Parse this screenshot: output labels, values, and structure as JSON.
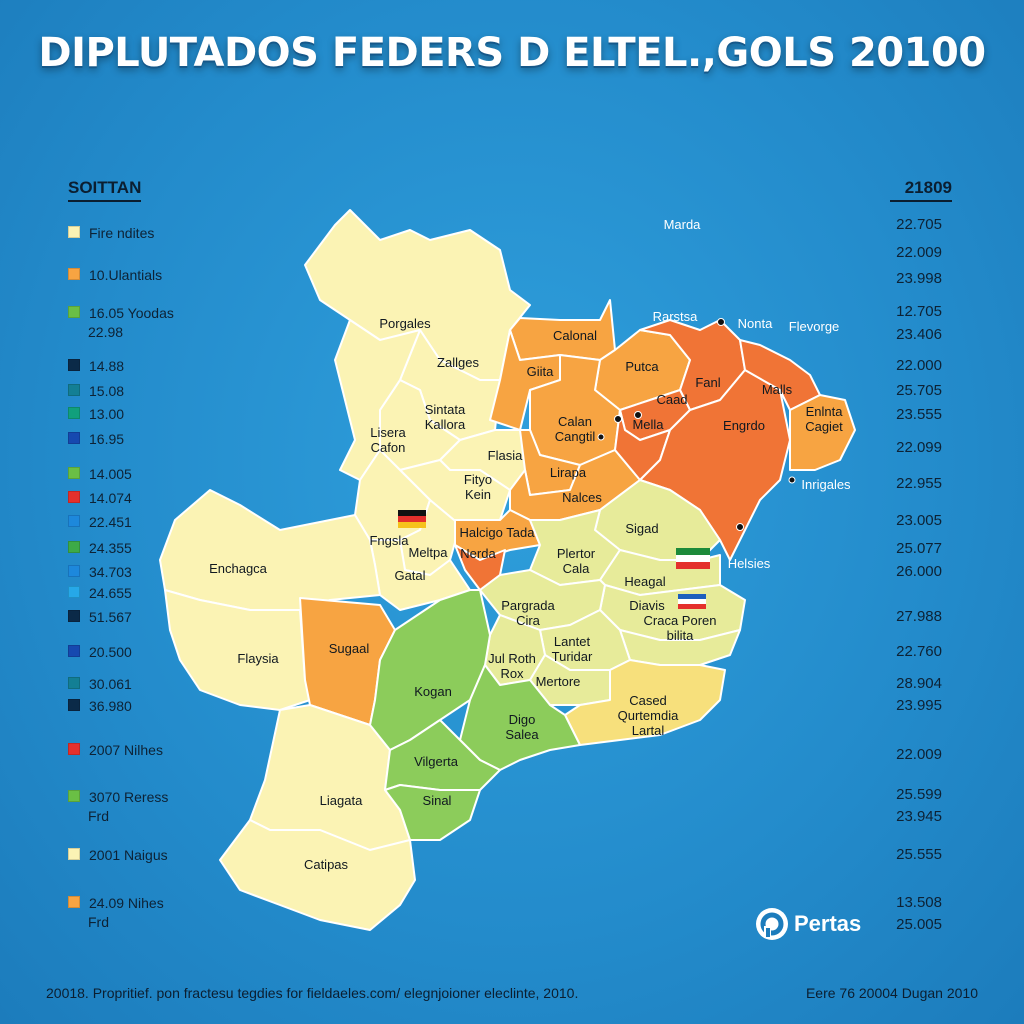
{
  "title": "DIPLUTADOS FEDERS D ELTEL.,GOLS 20100",
  "legend": {
    "heading": "SOITTAN",
    "items": [
      {
        "label": "Fire ndites",
        "color": "#fbf3b4"
      },
      {
        "label": "10.Ulantials",
        "color": "#f7a442"
      },
      {
        "label": "16.05 Yoodas",
        "sub": "22.98",
        "color": "#6abf45"
      },
      {
        "label": "14.88",
        "color": "#0b2a48"
      },
      {
        "label": "15.08",
        "color": "#137f94"
      },
      {
        "label": "13.00",
        "color": "#11a07c"
      },
      {
        "label": "16.95",
        "color": "#1649b0"
      },
      {
        "label": "14.005",
        "color": "#6abf45"
      },
      {
        "label": "14.074",
        "color": "#e4302c"
      },
      {
        "label": "22.451",
        "color": "#1d88dc"
      },
      {
        "label": "24.355",
        "color": "#3daa48"
      },
      {
        "label": "34.703",
        "color": "#1d88dc"
      },
      {
        "label": "24.655",
        "color": "#26a8e8"
      },
      {
        "label": "51.567",
        "color": "#0b2a48"
      },
      {
        "label": "20.500",
        "color": "#1649b0"
      },
      {
        "label": "30.061",
        "color": "#137f94"
      },
      {
        "label": "36.980",
        "color": "#0b2a48"
      },
      {
        "label": "2007 Nilhes",
        "color": "#e4302c"
      },
      {
        "label": "3070 Reress",
        "sub": "Frd",
        "color": "#6abf45"
      },
      {
        "label": "2001 Naigus",
        "color": "#fbf3b4"
      },
      {
        "label": "24.09 Nihes",
        "sub": "Frd",
        "color": "#f7a442"
      }
    ]
  },
  "values_column": {
    "heading": "21809",
    "values": [
      "22.705",
      "22.009",
      "23.998",
      "12.705",
      "23.406",
      "22.000",
      "25.705",
      "23.555",
      "22.099",
      "22.955",
      "23.005",
      "25.077",
      "26.000",
      "27.988",
      "22.760",
      "28.904",
      "23.995",
      "22.009",
      "25.599",
      "23.945",
      "25.555",
      "13.508",
      "25.005"
    ]
  },
  "map": {
    "regions": [
      {
        "name": "Porgales",
        "fill": "#fbf3b4"
      },
      {
        "name": "Zallges",
        "fill": "#fbf3b4"
      },
      {
        "name": "Sintata Kallora",
        "fill": "#fbf3b4"
      },
      {
        "name": "Lisera Cafon",
        "fill": "#fbf3b4"
      },
      {
        "name": "Flasia",
        "fill": "#fbf3b4"
      },
      {
        "name": "Fityo Kein",
        "fill": "#fbf3b4"
      },
      {
        "name": "Fngsla",
        "fill": "#fbf3b4"
      },
      {
        "name": "Meltpa",
        "fill": "#fbf3b4"
      },
      {
        "name": "Gatal",
        "fill": "#fbf3b4"
      },
      {
        "name": "Enchagca",
        "fill": "#fbf3b4"
      },
      {
        "name": "Flaysia",
        "fill": "#fbf3b4"
      },
      {
        "name": "Sugaal",
        "fill": "#f7a442"
      },
      {
        "name": "Liagata",
        "fill": "#fbf3b4"
      },
      {
        "name": "Catipas",
        "fill": "#fbf3b4"
      },
      {
        "name": "Calonal",
        "fill": "#f7a442"
      },
      {
        "name": "Giita",
        "fill": "#f7a442"
      },
      {
        "name": "Putca",
        "fill": "#f7a442"
      },
      {
        "name": "Calan Cangtil",
        "fill": "#f7a442"
      },
      {
        "name": "Lirapa",
        "fill": "#f7a442"
      },
      {
        "name": "Nalces",
        "fill": "#f7a442"
      },
      {
        "name": "Halcigo Tada",
        "fill": "#f7a442"
      },
      {
        "name": "Nerda",
        "fill": "#f7a442"
      },
      {
        "name": "Fanl",
        "fill": "#f07436"
      },
      {
        "name": "Caad",
        "fill": "#f07436"
      },
      {
        "name": "Mella",
        "fill": "#f07436"
      },
      {
        "name": "Engrdo",
        "fill": "#f07436"
      },
      {
        "name": "Malls",
        "fill": "#f07436"
      },
      {
        "name": "Enlnta Cagiet",
        "fill": "#f7a442"
      },
      {
        "name": "Sigad",
        "fill": "#e7eb9a"
      },
      {
        "name": "Plertor Cala",
        "fill": "#e7eb9a"
      },
      {
        "name": "Heagal",
        "fill": "#e7eb9a"
      },
      {
        "name": "Diavis",
        "fill": "#e7eb9a"
      },
      {
        "name": "Pargrada Cira",
        "fill": "#e7eb9a"
      },
      {
        "name": "Craca Poren bilita",
        "fill": "#e7eb9a"
      },
      {
        "name": "Lantet Turidar",
        "fill": "#e7eb9a"
      },
      {
        "name": "Jul Roth Rox",
        "fill": "#e7eb9a"
      },
      {
        "name": "Mertore",
        "fill": "#e7eb9a"
      },
      {
        "name": "Cased Qurtemdia Lartal",
        "fill": "#f7e07c"
      },
      {
        "name": "Kogan",
        "fill": "#8ccc5b"
      },
      {
        "name": "Digo Salea",
        "fill": "#8ccc5b"
      },
      {
        "name": "Vilgerta",
        "fill": "#8ccc5b"
      },
      {
        "name": "Sinal",
        "fill": "#8ccc5b"
      }
    ],
    "outside_labels": [
      "Marda",
      "Rarstsa",
      "Nonta",
      "Flevorge",
      "Inrigales",
      "Helsies"
    ],
    "flag_colors": {
      "flag1": [
        "#111111",
        "#e4302c",
        "#f6c21c"
      ],
      "flag2": [
        "#1d8a3a",
        "#ffffff",
        "#e4302c"
      ],
      "flag3": [
        "#1d5fbd",
        "#ffffff",
        "#e4302c"
      ]
    }
  },
  "brand": {
    "name": "Pertas"
  },
  "footer": {
    "left": "20018. Propritief. pon fractesu tegdies for fieldaeles.com/ elegnjoioner eleclinte, 2010.",
    "right": "Eere 76 20004 Dugan 2010"
  }
}
